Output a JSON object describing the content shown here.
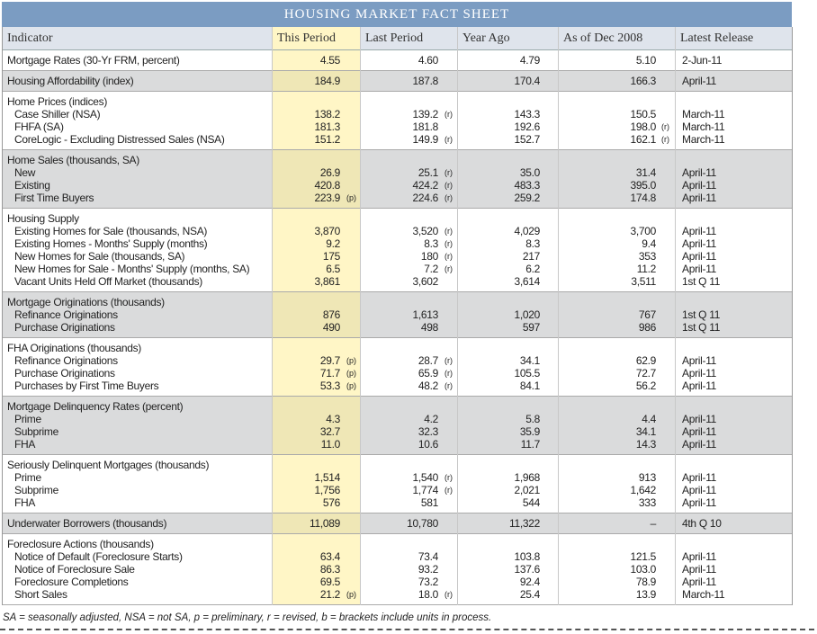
{
  "header": {
    "title": "HOUSING MARKET FACT SHEET",
    "columns": [
      "Indicator",
      "This Period",
      "Last Period",
      "Year Ago",
      "As of Dec 2008",
      "Latest Release"
    ]
  },
  "sections": [
    {
      "label": "Mortgage Rates (30-Yr FRM, percent)",
      "cells": [
        "4.55",
        "4.60",
        "4.79",
        "5.10",
        "2-Jun-11"
      ]
    },
    {
      "label": "Housing Affordability (index)",
      "cells": [
        "184.9",
        "187.8",
        "170.4",
        "166.3",
        "April-11"
      ]
    },
    {
      "label": "Home Prices (indices)",
      "rows": [
        {
          "label": "Case Shiller (NSA)",
          "cells": [
            "138.2",
            "139.2",
            "143.3",
            "150.5",
            "March-11"
          ],
          "flags": {
            "1": "(r)"
          }
        },
        {
          "label": "FHFA (SA)",
          "cells": [
            "181.3",
            "181.8",
            "192.6",
            "198.0",
            "March-11"
          ],
          "flags": {
            "3": "(r)"
          }
        },
        {
          "label": "CoreLogic - Excluding Distressed Sales (NSA)",
          "cells": [
            "151.2",
            "149.9",
            "152.7",
            "162.1",
            "March-11"
          ],
          "flags": {
            "1": "(r)",
            "3": "(r)"
          }
        }
      ]
    },
    {
      "label": "Home Sales (thousands, SA)",
      "rows": [
        {
          "label": "New",
          "cells": [
            "26.9",
            "25.1",
            "35.0",
            "31.4",
            "April-11"
          ],
          "flags": {
            "1": "(r)"
          }
        },
        {
          "label": "Existing",
          "cells": [
            "420.8",
            "424.2",
            "483.3",
            "395.0",
            "April-11"
          ],
          "flags": {
            "1": "(r)"
          }
        },
        {
          "label": "First Time Buyers",
          "cells": [
            "223.9",
            "224.6",
            "259.2",
            "174.8",
            "April-11"
          ],
          "flags": {
            "0": "(p)",
            "1": "(r)"
          }
        }
      ]
    },
    {
      "label": "Housing Supply",
      "rows": [
        {
          "label": "Existing Homes for Sale (thousands, NSA)",
          "cells": [
            "3,870",
            "3,520",
            "4,029",
            "3,700",
            "April-11"
          ],
          "flags": {
            "1": "(r)"
          }
        },
        {
          "label": "Existing Homes - Months' Supply (months)",
          "cells": [
            "9.2",
            "8.3",
            "8.3",
            "9.4",
            "April-11"
          ],
          "flags": {
            "1": "(r)"
          }
        },
        {
          "label": "New Homes for Sale (thousands, SA)",
          "cells": [
            "175",
            "180",
            "217",
            "353",
            "April-11"
          ],
          "flags": {
            "1": "(r)"
          }
        },
        {
          "label": "New Homes for Sale - Months' Supply (months, SA)",
          "cells": [
            "6.5",
            "7.2",
            "6.2",
            "11.2",
            "April-11"
          ],
          "flags": {
            "1": "(r)"
          }
        },
        {
          "label": "Vacant Units Held Off Market (thousands)",
          "cells": [
            "3,861",
            "3,602",
            "3,614",
            "3,511",
            "1st Q 11"
          ]
        }
      ]
    },
    {
      "label": "Mortgage Originations (thousands)",
      "rows": [
        {
          "label": "Refinance Originations",
          "cells": [
            "876",
            "1,613",
            "1,020",
            "767",
            "1st Q 11"
          ]
        },
        {
          "label": "Purchase Originations",
          "cells": [
            "490",
            "498",
            "597",
            "986",
            "1st Q 11"
          ]
        }
      ]
    },
    {
      "label": "FHA Originations (thousands)",
      "rows": [
        {
          "label": "Refinance Originations",
          "cells": [
            "29.7",
            "28.7",
            "34.1",
            "62.9",
            "April-11"
          ],
          "flags": {
            "0": "(p)",
            "1": "(r)"
          }
        },
        {
          "label": "Purchase Originations",
          "cells": [
            "71.7",
            "65.9",
            "105.5",
            "72.7",
            "April-11"
          ],
          "flags": {
            "0": "(p)",
            "1": "(r)"
          }
        },
        {
          "label": "Purchases by First Time Buyers",
          "cells": [
            "53.3",
            "48.2",
            "84.1",
            "56.2",
            "April-11"
          ],
          "flags": {
            "0": "(p)",
            "1": "(r)"
          }
        }
      ]
    },
    {
      "label": "Mortgage Delinquency Rates (percent)",
      "rows": [
        {
          "label": "Prime",
          "cells": [
            "4.3",
            "4.2",
            "5.8",
            "4.4",
            "April-11"
          ]
        },
        {
          "label": "Subprime",
          "cells": [
            "32.7",
            "32.3",
            "35.9",
            "34.1",
            "April-11"
          ]
        },
        {
          "label": "FHA",
          "cells": [
            "11.0",
            "10.6",
            "11.7",
            "14.3",
            "April-11"
          ]
        }
      ]
    },
    {
      "label": "Seriously Delinquent Mortgages (thousands)",
      "rows": [
        {
          "label": "Prime",
          "cells": [
            "1,514",
            "1,540",
            "1,968",
            "913",
            "April-11"
          ],
          "flags": {
            "1": "(r)"
          }
        },
        {
          "label": "Subprime",
          "cells": [
            "1,756",
            "1,774",
            "2,021",
            "1,642",
            "April-11"
          ],
          "flags": {
            "1": "(r)"
          }
        },
        {
          "label": "FHA",
          "cells": [
            "576",
            "581",
            "544",
            "333",
            "April-11"
          ]
        }
      ]
    },
    {
      "label": "Underwater Borrowers (thousands)",
      "cells": [
        "11,089",
        "10,780",
        "11,322",
        "–",
        "4th Q 10"
      ]
    },
    {
      "label": "Foreclosure Actions (thousands)",
      "rows": [
        {
          "label": "Notice of Default (Foreclosure Starts)",
          "cells": [
            "63.4",
            "73.4",
            "103.8",
            "121.5",
            "April-11"
          ]
        },
        {
          "label": "Notice of Foreclosure Sale",
          "cells": [
            "86.3",
            "93.2",
            "137.6",
            "103.0",
            "April-11"
          ]
        },
        {
          "label": "Foreclosure Completions",
          "cells": [
            "69.5",
            "73.2",
            "92.4",
            "78.9",
            "April-11"
          ]
        },
        {
          "label": "Short Sales",
          "cells": [
            "21.2",
            "18.0",
            "25.4",
            "13.9",
            "March-11"
          ],
          "flags": {
            "0": "(p)",
            "1": "(r)"
          }
        }
      ]
    }
  ],
  "footnote": "SA = seasonally adjusted, NSA = not SA, p = preliminary, r = revised, b = brackets include units in process."
}
